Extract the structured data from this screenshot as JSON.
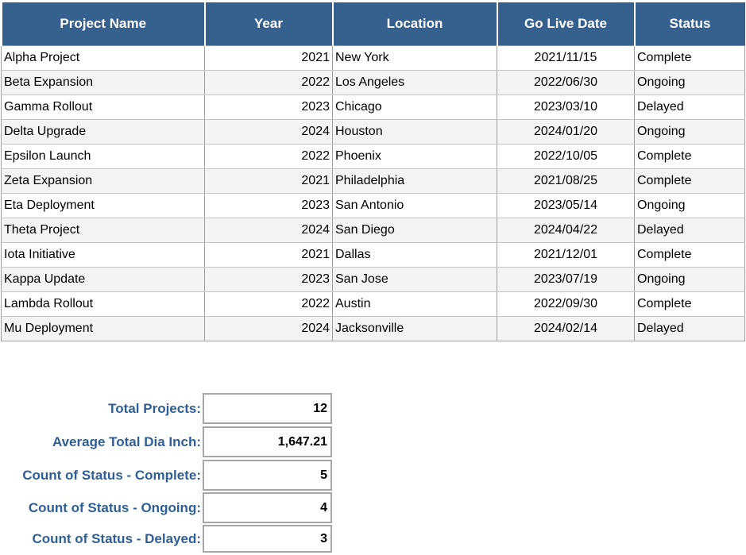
{
  "table": {
    "columns": [
      {
        "key": "project-name",
        "label": "Project Name"
      },
      {
        "key": "year",
        "label": "Year"
      },
      {
        "key": "location",
        "label": "Location"
      },
      {
        "key": "go-live-date",
        "label": "Go Live Date"
      },
      {
        "key": "status",
        "label": "Status"
      }
    ],
    "rows": [
      [
        "Alpha Project",
        "2021",
        "New York",
        "2021/11/15",
        "Complete"
      ],
      [
        "Beta Expansion",
        "2022",
        "Los Angeles",
        "2022/06/30",
        "Ongoing"
      ],
      [
        "Gamma Rollout",
        "2023",
        "Chicago",
        "2023/03/10",
        "Delayed"
      ],
      [
        "Delta Upgrade",
        "2024",
        "Houston",
        "2024/01/20",
        "Ongoing"
      ],
      [
        "Epsilon Launch",
        "2022",
        "Phoenix",
        "2022/10/05",
        "Complete"
      ],
      [
        "Zeta Expansion",
        "2021",
        "Philadelphia",
        "2021/08/25",
        "Complete"
      ],
      [
        "Eta Deployment",
        "2023",
        "San Antonio",
        "2023/05/14",
        "Ongoing"
      ],
      [
        "Theta Project",
        "2024",
        "San Diego",
        "2024/04/22",
        "Delayed"
      ],
      [
        "Iota Initiative",
        "2021",
        "Dallas",
        "2021/12/01",
        "Complete"
      ],
      [
        "Kappa Update",
        "2023",
        "San Jose",
        "2023/07/19",
        "Ongoing"
      ],
      [
        "Lambda Rollout",
        "2022",
        "Austin",
        "2022/09/30",
        "Complete"
      ],
      [
        "Mu Deployment",
        "2024",
        "Jacksonville",
        "2024/02/14",
        "Delayed"
      ]
    ]
  },
  "summary": {
    "items": [
      {
        "label": "Total Projects:",
        "value": "12"
      },
      {
        "label": "Average Total Dia Inch:",
        "value": "1,647.21"
      },
      {
        "label": "Count of Status - Complete:",
        "value": "5"
      },
      {
        "label": "Count of Status - Ongoing:",
        "value": "4"
      },
      {
        "label": "Count of Status - Delayed:",
        "value": "3"
      }
    ]
  },
  "colors": {
    "header_bg": "#36618E",
    "header_text": "#FFFFFF",
    "label_text": "#2E5E96",
    "stripe": "#F3F3F3",
    "grid_v": "#A0A0A0",
    "grid_h": "#C4C4C4",
    "box_border": "#A6A6A6"
  }
}
